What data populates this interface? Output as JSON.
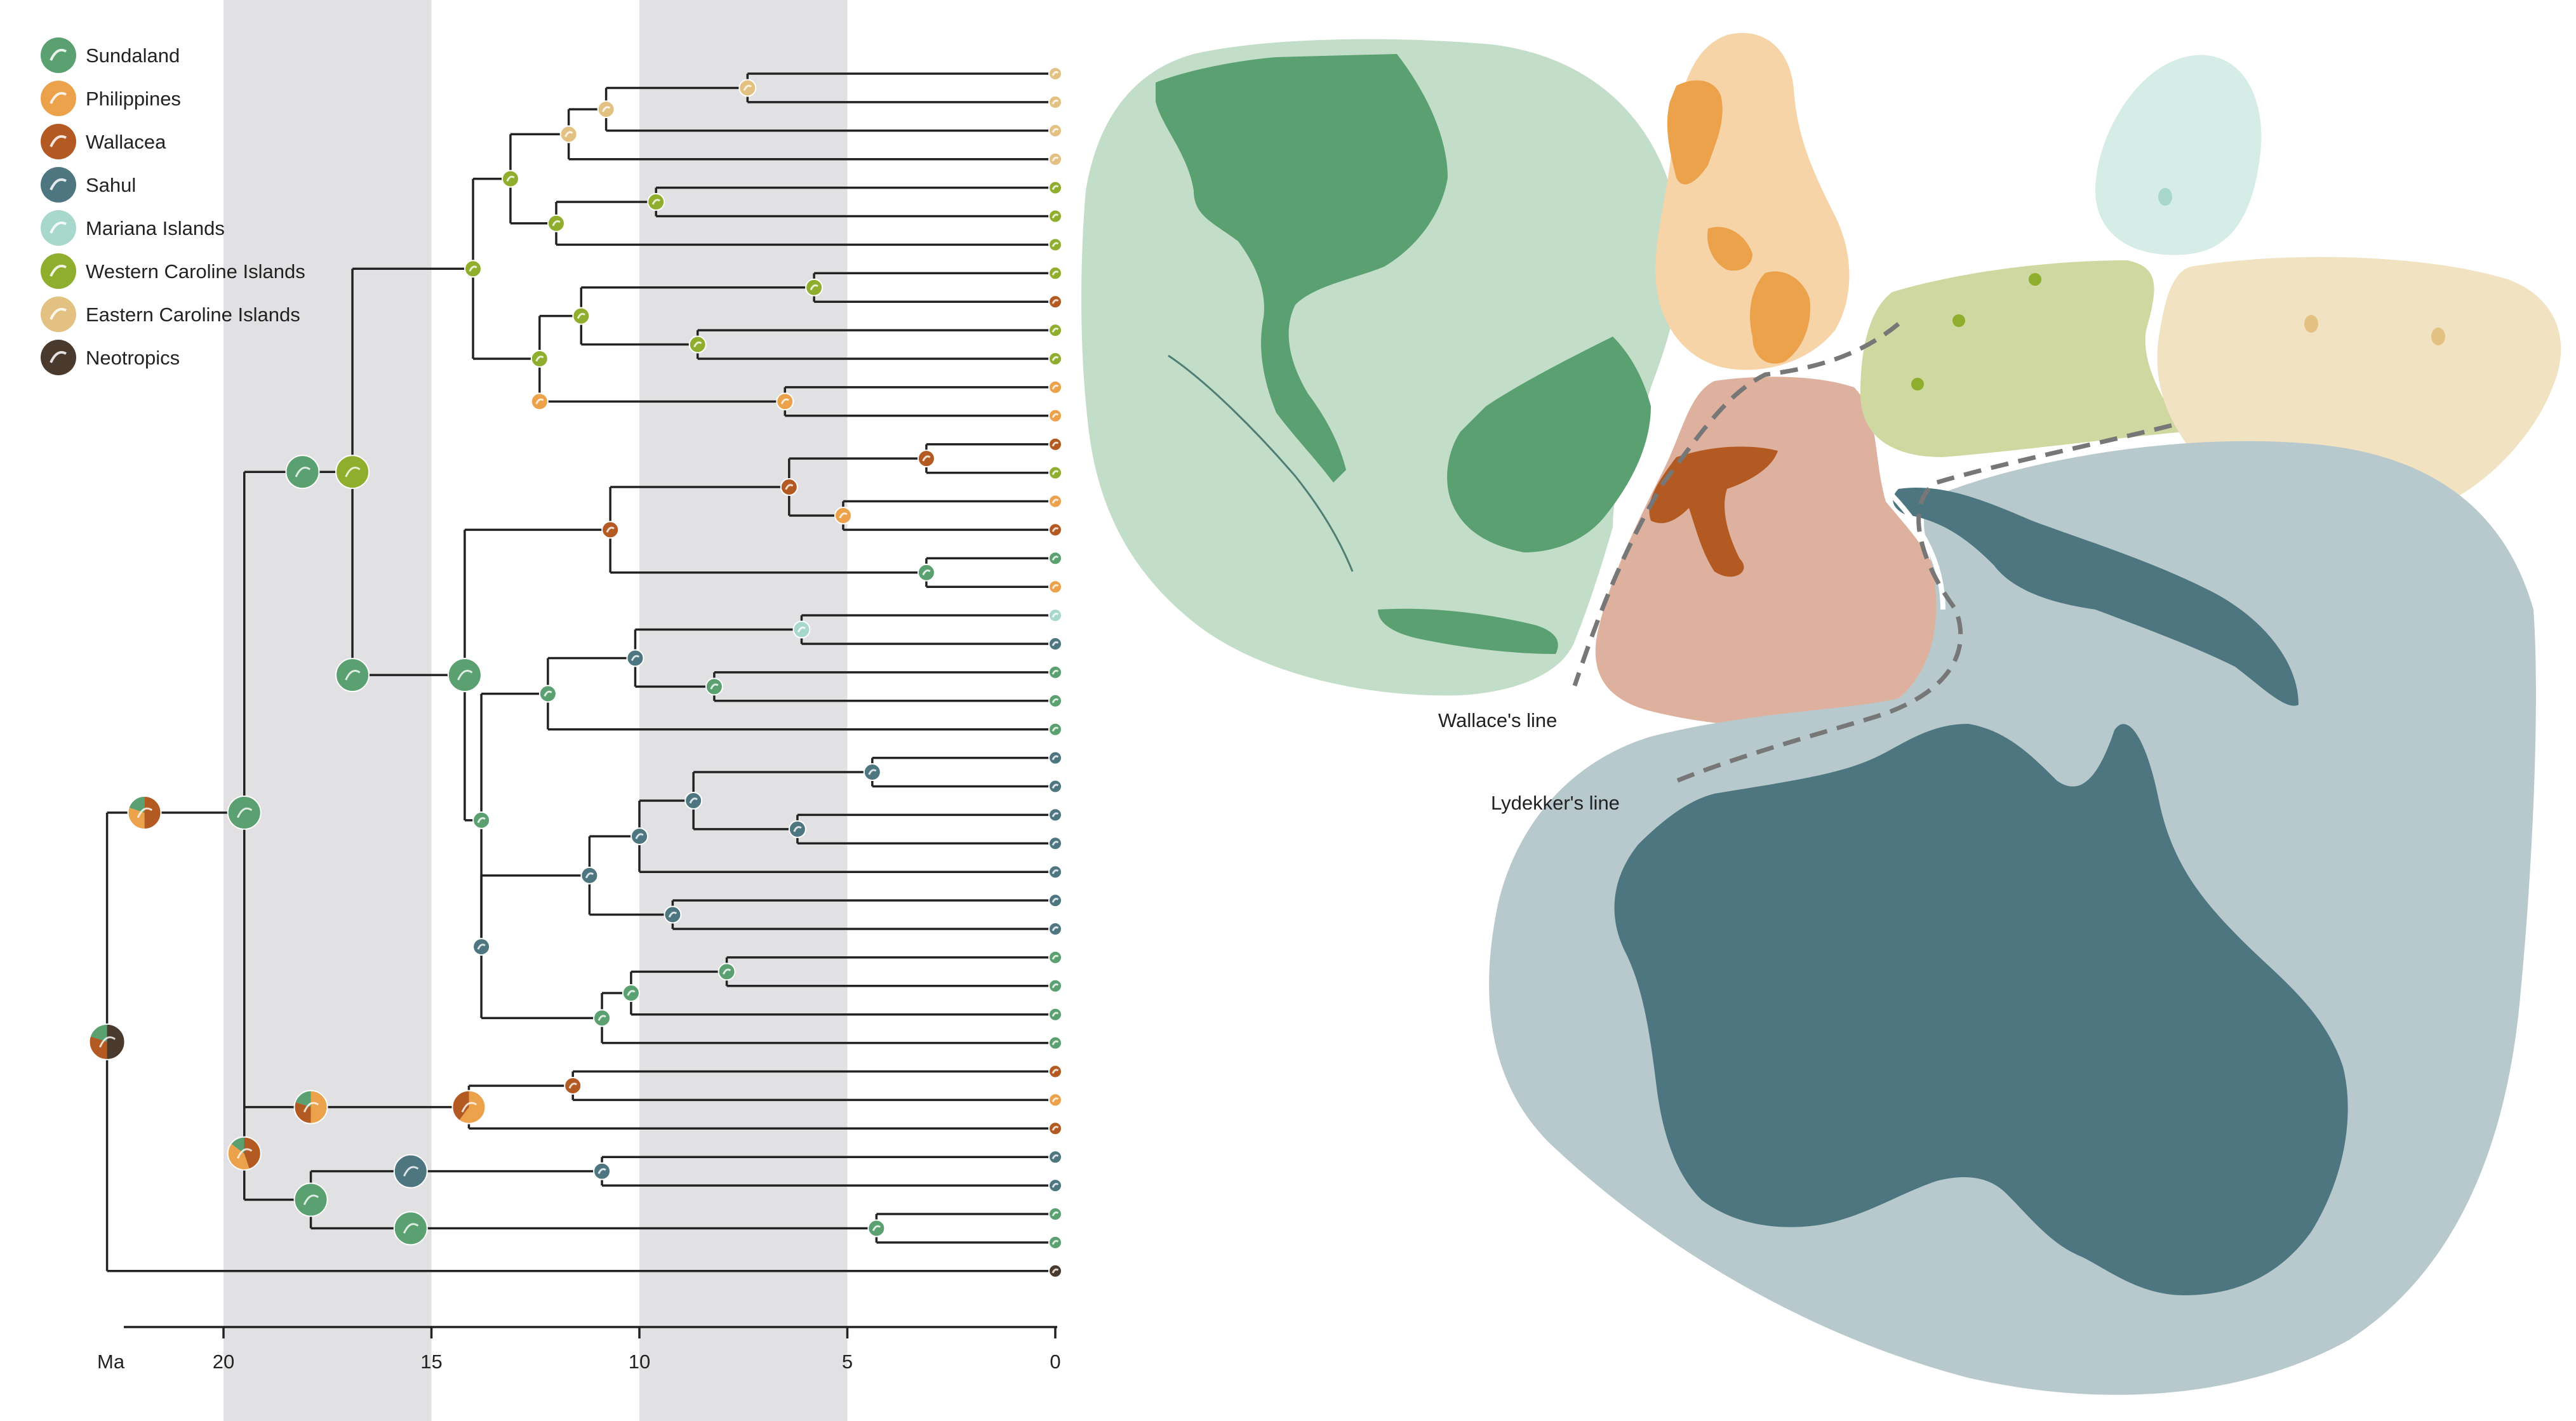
{
  "legend": [
    {
      "key": "sundaland",
      "label": "Sundaland",
      "color": "#5aa070"
    },
    {
      "key": "philippines",
      "label": "Philippines",
      "color": "#eca14b"
    },
    {
      "key": "wallacea",
      "label": "Wallacea",
      "color": "#b35a22"
    },
    {
      "key": "sahul",
      "label": "Sahul",
      "color": "#4d7680"
    },
    {
      "key": "mariana",
      "label": "Mariana Islands",
      "color": "#a8d8cc"
    },
    {
      "key": "wcaroline",
      "label": "Western Caroline Islands",
      "color": "#8fae2d"
    },
    {
      "key": "ecaroline",
      "label": "Eastern Caroline Islands",
      "color": "#e3c182"
    },
    {
      "key": "neotropics",
      "label": "Neotropics",
      "color": "#4a3a2e"
    }
  ],
  "axis": {
    "unit_label": "Ma",
    "ticks": [
      20,
      15,
      10,
      5,
      0
    ],
    "shaded_bands": [
      [
        20,
        15
      ],
      [
        10,
        5
      ]
    ]
  },
  "map": {
    "labels": {
      "wallace": "Wallace's line",
      "lydekker": "Lydekker's line"
    }
  },
  "tips": [
    "ecaroline",
    "ecaroline",
    "ecaroline",
    "ecaroline",
    "wcaroline",
    "wcaroline",
    "wcaroline",
    "wcaroline",
    "wallacea",
    "wcaroline",
    "wcaroline",
    "philippines",
    "philippines",
    "wallacea",
    "wcaroline",
    "philippines",
    "wallacea",
    "sundaland",
    "philippines",
    "mariana",
    "sahul",
    "sundaland",
    "sundaland",
    "sundaland",
    "sahul",
    "sahul",
    "sahul",
    "sahul",
    "sahul",
    "sahul",
    "sahul",
    "sundaland",
    "sundaland",
    "sundaland",
    "sundaland",
    "wallacea",
    "philippines",
    "wallacea",
    "sahul",
    "sahul",
    "sundaland",
    "sundaland",
    "neotropics"
  ]
}
